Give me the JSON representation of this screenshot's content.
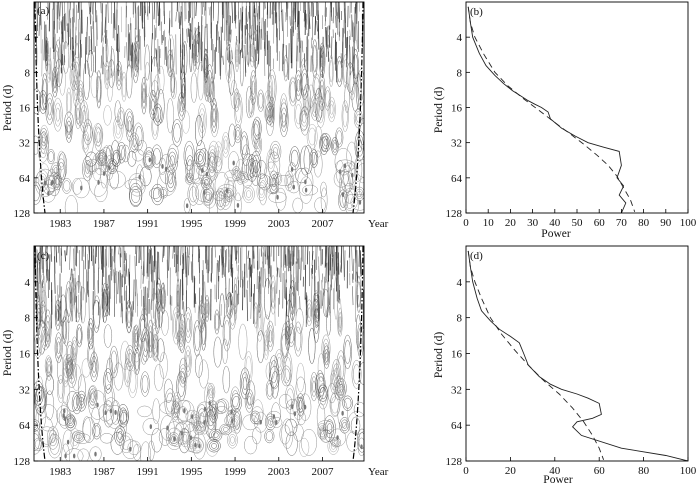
{
  "chart_data": [
    {
      "id": "a",
      "type": "heatmap",
      "panel_label": "(a)",
      "ylabel": "Period (d)",
      "xlabel": "Year",
      "x_ticks": [
        "1983",
        "1987",
        "1991",
        "1995",
        "1999",
        "2003",
        "2007"
      ],
      "y_ticks": [
        "4",
        "8",
        "16",
        "32",
        "64",
        "128"
      ],
      "xlim": [
        1980.6,
        2010.8
      ],
      "ylim_log2": [
        2,
        128
      ],
      "description_free": true
    },
    {
      "id": "b",
      "type": "line",
      "panel_label": "(b)",
      "ylabel": "Period (d)",
      "xlabel": "Power",
      "x_ticks": [
        "0",
        "10",
        "20",
        "30",
        "40",
        "50",
        "60",
        "70",
        "80",
        "90",
        "100"
      ],
      "y_ticks": [
        "4",
        "8",
        "16",
        "32",
        "64",
        "128"
      ],
      "xlim": [
        0,
        100
      ],
      "ylim": [
        2,
        128
      ],
      "series": [
        {
          "style": "solid",
          "x": [
            1,
            2,
            3,
            6,
            9,
            13,
            17,
            21,
            24,
            28,
            31,
            34,
            37,
            38,
            43,
            49,
            55,
            62,
            69,
            70,
            68,
            71,
            69,
            72,
            70
          ],
          "y": [
            2.2,
            3,
            4,
            5.5,
            7,
            8.5,
            10,
            11.5,
            12.5,
            14,
            15,
            16,
            17.5,
            20,
            24,
            28,
            32,
            35,
            38,
            50,
            64,
            75,
            90,
            105,
            128
          ]
        },
        {
          "style": "dashed",
          "x": [
            1,
            2,
            4,
            8,
            13,
            19,
            26,
            33,
            40,
            47,
            53,
            59,
            64,
            68,
            71,
            74,
            76
          ],
          "y": [
            2.2,
            3,
            4,
            5.6,
            8,
            10.5,
            13.5,
            17,
            21.5,
            27,
            33,
            41,
            50,
            62,
            78,
            98,
            125
          ]
        }
      ]
    },
    {
      "id": "c",
      "type": "heatmap",
      "panel_label": "(c)",
      "ylabel": "Period (d)",
      "xlabel": "Year",
      "x_ticks": [
        "1983",
        "1987",
        "1991",
        "1995",
        "1999",
        "2003",
        "2007"
      ],
      "y_ticks": [
        "4",
        "8",
        "16",
        "32",
        "64",
        "128"
      ],
      "xlim": [
        1980.6,
        2010.8
      ],
      "ylim_log2": [
        2,
        128
      ]
    },
    {
      "id": "d",
      "type": "line",
      "panel_label": "(d)",
      "ylabel": "Period (d)",
      "xlabel": "Power",
      "x_ticks": [
        "0",
        "20",
        "40",
        "60",
        "80",
        "100"
      ],
      "y_ticks": [
        "4",
        "8",
        "16",
        "32",
        "64",
        "128"
      ],
      "xlim": [
        0,
        100
      ],
      "ylim": [
        2,
        128
      ],
      "series": [
        {
          "style": "solid",
          "x": [
            1,
            2,
            3,
            5,
            7,
            11,
            15,
            20,
            24,
            26,
            28,
            33,
            38,
            43,
            50,
            55,
            60,
            61,
            57,
            50,
            48,
            52,
            70,
            90,
            100
          ],
          "y": [
            2.2,
            3,
            4,
            5.5,
            7,
            8.5,
            10,
            11.5,
            13,
            16,
            20,
            25,
            29,
            32,
            35,
            38,
            42,
            52,
            56,
            60,
            66,
            78,
            100,
            115,
            128
          ]
        },
        {
          "style": "dashed",
          "x": [
            1,
            2,
            4,
            7,
            11,
            16,
            22,
            28,
            35,
            42,
            48,
            53,
            57,
            60,
            62
          ],
          "y": [
            2.2,
            3,
            4,
            5.5,
            8,
            11,
            15,
            20,
            27,
            35,
            46,
            60,
            78,
            100,
            125
          ]
        }
      ]
    }
  ]
}
